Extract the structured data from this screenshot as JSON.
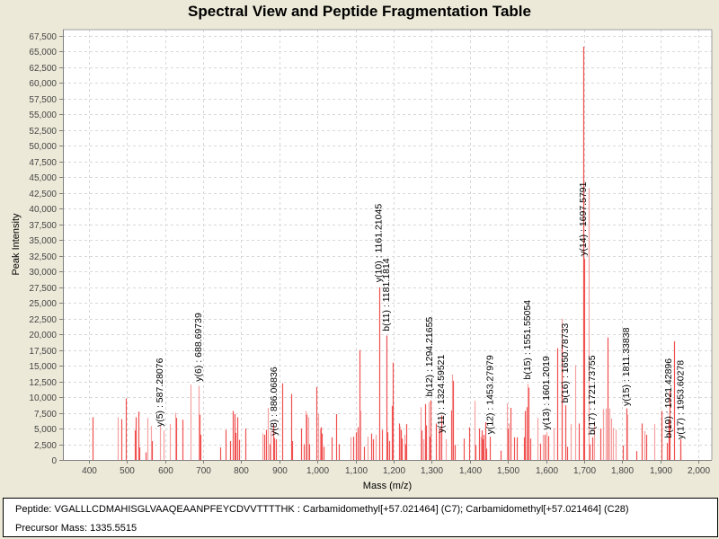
{
  "window": {
    "title": "Spectral View and Peptide Fragmentation Table"
  },
  "info_panel": {
    "peptide_label": "Peptide:",
    "peptide": "VGALLLCDMAHISGLVAAQEAANPFEYCDVVTTTTHK : Carbamidomethyl[+57.021464] (C7); Carbamidomethyl[+57.021464] (C28)",
    "precursor_label": "Precursor Mass:",
    "precursor_mass": "1335.5515"
  },
  "colors": {
    "peak_dark": "#f05050",
    "peak_light": "#f5a0a0",
    "grid": "#d8d8d8",
    "plot_bg": "#ffffff",
    "frame_bg": "#ece9d8"
  },
  "chart_data": {
    "type": "bar",
    "title": "Spectral View and Peptide Fragmentation Table",
    "xlabel": "Mass (m/z)",
    "ylabel": "Peak Intensity",
    "xlim": [
      332,
      2035
    ],
    "ylim": [
      0,
      68500
    ],
    "grid": true,
    "legend": "none",
    "x_ticks": [
      400,
      500,
      600,
      700,
      800,
      900,
      1000,
      1100,
      1200,
      1300,
      1400,
      1500,
      1600,
      1700,
      1800,
      1900,
      2000
    ],
    "x_tick_labels": [
      "400",
      "500",
      "600",
      "700",
      "800",
      "900",
      "1,000",
      "1,100",
      "1,200",
      "1,300",
      "1,400",
      "1,500",
      "1,600",
      "1,700",
      "1,800",
      "1,900",
      "2,000"
    ],
    "y_ticks": [
      0,
      2500,
      5000,
      7500,
      10000,
      12500,
      15000,
      17500,
      20000,
      22500,
      25000,
      27500,
      30000,
      32500,
      35000,
      37500,
      40000,
      42500,
      45000,
      47500,
      50000,
      52500,
      55000,
      57500,
      60000,
      62500,
      65000,
      67500
    ],
    "y_tick_labels": [
      "0",
      "2,500",
      "5,000",
      "7,500",
      "10,000",
      "12,500",
      "15,000",
      "17,500",
      "20,000",
      "22,500",
      "25,000",
      "27,500",
      "30,000",
      "32,500",
      "35,000",
      "37,500",
      "40,000",
      "42,500",
      "45,000",
      "47,500",
      "50,000",
      "52,500",
      "55,000",
      "57,500",
      "60,000",
      "62,500",
      "65,000",
      "67,500"
    ],
    "peaks": [
      {
        "mz": 410,
        "intensity": 6800,
        "shade": "dark"
      },
      {
        "mz": 475,
        "intensity": 6800,
        "shade": "light"
      },
      {
        "mz": 486,
        "intensity": 6500,
        "shade": "dark"
      },
      {
        "mz": 496,
        "intensity": 9800,
        "shade": "dark"
      },
      {
        "mz": 520,
        "intensity": 4700,
        "shade": "dark"
      },
      {
        "mz": 522,
        "intensity": 6800,
        "shade": "dark"
      },
      {
        "mz": 530,
        "intensity": 7700,
        "shade": "dark"
      },
      {
        "mz": 533,
        "intensity": 2000,
        "shade": "dark"
      },
      {
        "mz": 550,
        "intensity": 1200,
        "shade": "dark"
      },
      {
        "mz": 553,
        "intensity": 6700,
        "shade": "light"
      },
      {
        "mz": 563,
        "intensity": 5400,
        "shade": "light"
      },
      {
        "mz": 565,
        "intensity": 3000,
        "shade": "dark"
      },
      {
        "mz": 587.28,
        "intensity": 5500,
        "shade": "light"
      },
      {
        "mz": 595,
        "intensity": 4700,
        "shade": "light"
      },
      {
        "mz": 612,
        "intensity": 5700,
        "shade": "light"
      },
      {
        "mz": 628,
        "intensity": 7500,
        "shade": "light"
      },
      {
        "mz": 630,
        "intensity": 6700,
        "shade": "dark"
      },
      {
        "mz": 645,
        "intensity": 6400,
        "shade": "dark"
      },
      {
        "mz": 668,
        "intensity": 12000,
        "shade": "light"
      },
      {
        "mz": 688.7,
        "intensity": 11800,
        "shade": "light"
      },
      {
        "mz": 690,
        "intensity": 7200,
        "shade": "dark"
      },
      {
        "mz": 692,
        "intensity": 4000,
        "shade": "dark"
      },
      {
        "mz": 745,
        "intensity": 2000,
        "shade": "dark"
      },
      {
        "mz": 760,
        "intensity": 4800,
        "shade": "dark"
      },
      {
        "mz": 770,
        "intensity": 3000,
        "shade": "dark"
      },
      {
        "mz": 778,
        "intensity": 7800,
        "shade": "dark"
      },
      {
        "mz": 782,
        "intensity": 7300,
        "shade": "dark"
      },
      {
        "mz": 785,
        "intensity": 4300,
        "shade": "dark"
      },
      {
        "mz": 790,
        "intensity": 6800,
        "shade": "dark"
      },
      {
        "mz": 795,
        "intensity": 3200,
        "shade": "dark"
      },
      {
        "mz": 810,
        "intensity": 5000,
        "shade": "dark"
      },
      {
        "mz": 855,
        "intensity": 4200,
        "shade": "light"
      },
      {
        "mz": 860,
        "intensity": 4000,
        "shade": "dark"
      },
      {
        "mz": 865,
        "intensity": 4800,
        "shade": "dark"
      },
      {
        "mz": 870,
        "intensity": 8300,
        "shade": "light"
      },
      {
        "mz": 875,
        "intensity": 2500,
        "shade": "dark"
      },
      {
        "mz": 878,
        "intensity": 4600,
        "shade": "light"
      },
      {
        "mz": 884,
        "intensity": 5600,
        "shade": "dark"
      },
      {
        "mz": 886.07,
        "intensity": 3500,
        "shade": "dark"
      },
      {
        "mz": 890,
        "intensity": 3300,
        "shade": "dark"
      },
      {
        "mz": 907,
        "intensity": 12200,
        "shade": "dark"
      },
      {
        "mz": 932,
        "intensity": 10500,
        "shade": "dark"
      },
      {
        "mz": 934,
        "intensity": 3000,
        "shade": "dark"
      },
      {
        "mz": 958,
        "intensity": 5000,
        "shade": "dark"
      },
      {
        "mz": 963,
        "intensity": 2500,
        "shade": "dark"
      },
      {
        "mz": 970,
        "intensity": 7800,
        "shade": "light"
      },
      {
        "mz": 972,
        "intensity": 7200,
        "shade": "dark"
      },
      {
        "mz": 975,
        "intensity": 6800,
        "shade": "light"
      },
      {
        "mz": 978,
        "intensity": 2500,
        "shade": "dark"
      },
      {
        "mz": 998,
        "intensity": 11600,
        "shade": "dark"
      },
      {
        "mz": 1003,
        "intensity": 7300,
        "shade": "light"
      },
      {
        "mz": 1007,
        "intensity": 5000,
        "shade": "light"
      },
      {
        "mz": 1010,
        "intensity": 5200,
        "shade": "dark"
      },
      {
        "mz": 1012,
        "intensity": 4200,
        "shade": "dark"
      },
      {
        "mz": 1017,
        "intensity": 2100,
        "shade": "dark"
      },
      {
        "mz": 1038,
        "intensity": 3600,
        "shade": "dark"
      },
      {
        "mz": 1048,
        "intensity": 7300,
        "shade": "dark"
      },
      {
        "mz": 1057,
        "intensity": 2500,
        "shade": "dark"
      },
      {
        "mz": 1087,
        "intensity": 3600,
        "shade": "light"
      },
      {
        "mz": 1094,
        "intensity": 3700,
        "shade": "dark"
      },
      {
        "mz": 1100,
        "intensity": 4400,
        "shade": "dark"
      },
      {
        "mz": 1106,
        "intensity": 5200,
        "shade": "dark"
      },
      {
        "mz": 1110,
        "intensity": 17500,
        "shade": "dark"
      },
      {
        "mz": 1113,
        "intensity": 7800,
        "shade": "light"
      },
      {
        "mz": 1123,
        "intensity": 2100,
        "shade": "dark"
      },
      {
        "mz": 1132,
        "intensity": 3700,
        "shade": "light"
      },
      {
        "mz": 1141,
        "intensity": 4200,
        "shade": "dark"
      },
      {
        "mz": 1145,
        "intensity": 3300,
        "shade": "dark"
      },
      {
        "mz": 1152,
        "intensity": 4000,
        "shade": "light"
      },
      {
        "mz": 1161.21,
        "intensity": 27500,
        "shade": "dark"
      },
      {
        "mz": 1170,
        "intensity": 4800,
        "shade": "dark"
      },
      {
        "mz": 1181.18,
        "intensity": 19800,
        "shade": "dark"
      },
      {
        "mz": 1183,
        "intensity": 4400,
        "shade": "dark"
      },
      {
        "mz": 1188,
        "intensity": 3000,
        "shade": "dark"
      },
      {
        "mz": 1195,
        "intensity": 8600,
        "shade": "dark"
      },
      {
        "mz": 1198,
        "intensity": 15500,
        "shade": "dark"
      },
      {
        "mz": 1213,
        "intensity": 5800,
        "shade": "dark"
      },
      {
        "mz": 1216,
        "intensity": 5300,
        "shade": "light"
      },
      {
        "mz": 1219,
        "intensity": 4800,
        "shade": "dark"
      },
      {
        "mz": 1222,
        "intensity": 3400,
        "shade": "dark"
      },
      {
        "mz": 1228,
        "intensity": 4000,
        "shade": "light"
      },
      {
        "mz": 1231,
        "intensity": 2500,
        "shade": "dark"
      },
      {
        "mz": 1234,
        "intensity": 5700,
        "shade": "dark"
      },
      {
        "mz": 1270,
        "intensity": 8400,
        "shade": "light"
      },
      {
        "mz": 1272,
        "intensity": 4700,
        "shade": "dark"
      },
      {
        "mz": 1278,
        "intensity": 3300,
        "shade": "light"
      },
      {
        "mz": 1282,
        "intensity": 8900,
        "shade": "dark"
      },
      {
        "mz": 1285,
        "intensity": 5500,
        "shade": "dark"
      },
      {
        "mz": 1291,
        "intensity": 9200,
        "shade": "light"
      },
      {
        "mz": 1294.22,
        "intensity": 3700,
        "shade": "dark"
      },
      {
        "mz": 1297,
        "intensity": 9500,
        "shade": "dark"
      },
      {
        "mz": 1312,
        "intensity": 5800,
        "shade": "dark"
      },
      {
        "mz": 1319,
        "intensity": 4800,
        "shade": "light"
      },
      {
        "mz": 1321,
        "intensity": 5000,
        "shade": "dark"
      },
      {
        "mz": 1324.6,
        "intensity": 7100,
        "shade": "dark"
      },
      {
        "mz": 1336,
        "intensity": 3300,
        "shade": "light"
      },
      {
        "mz": 1352,
        "intensity": 7900,
        "shade": "dark"
      },
      {
        "mz": 1354,
        "intensity": 13600,
        "shade": "light"
      },
      {
        "mz": 1356,
        "intensity": 12600,
        "shade": "dark"
      },
      {
        "mz": 1360,
        "intensity": 2400,
        "shade": "dark"
      },
      {
        "mz": 1385,
        "intensity": 3400,
        "shade": "dark"
      },
      {
        "mz": 1397,
        "intensity": 5200,
        "shade": "dark"
      },
      {
        "mz": 1412,
        "intensity": 9400,
        "shade": "light"
      },
      {
        "mz": 1414,
        "intensity": 2400,
        "shade": "dark"
      },
      {
        "mz": 1423,
        "intensity": 5000,
        "shade": "dark"
      },
      {
        "mz": 1428,
        "intensity": 3700,
        "shade": "light"
      },
      {
        "mz": 1431,
        "intensity": 4700,
        "shade": "dark"
      },
      {
        "mz": 1434,
        "intensity": 3300,
        "shade": "dark"
      },
      {
        "mz": 1437,
        "intensity": 4000,
        "shade": "dark"
      },
      {
        "mz": 1441,
        "intensity": 6000,
        "shade": "dark"
      },
      {
        "mz": 1444,
        "intensity": 1800,
        "shade": "dark"
      },
      {
        "mz": 1453.28,
        "intensity": 3700,
        "shade": "dark"
      },
      {
        "mz": 1480,
        "intensity": 1500,
        "shade": "dark"
      },
      {
        "mz": 1497,
        "intensity": 9000,
        "shade": "light"
      },
      {
        "mz": 1500,
        "intensity": 5000,
        "shade": "dark"
      },
      {
        "mz": 1503,
        "intensity": 5800,
        "shade": "light"
      },
      {
        "mz": 1506,
        "intensity": 8300,
        "shade": "dark"
      },
      {
        "mz": 1515,
        "intensity": 3600,
        "shade": "dark"
      },
      {
        "mz": 1524,
        "intensity": 3600,
        "shade": "dark"
      },
      {
        "mz": 1541,
        "intensity": 3600,
        "shade": "dark"
      },
      {
        "mz": 1545,
        "intensity": 7800,
        "shade": "dark"
      },
      {
        "mz": 1549,
        "intensity": 8400,
        "shade": "dark"
      },
      {
        "mz": 1551.55,
        "intensity": 12100,
        "shade": "light"
      },
      {
        "mz": 1554,
        "intensity": 11500,
        "shade": "dark"
      },
      {
        "mz": 1558,
        "intensity": 3400,
        "shade": "dark"
      },
      {
        "mz": 1578,
        "intensity": 6700,
        "shade": "light"
      },
      {
        "mz": 1584,
        "intensity": 2600,
        "shade": "dark"
      },
      {
        "mz": 1592,
        "intensity": 4000,
        "shade": "light"
      },
      {
        "mz": 1597,
        "intensity": 4000,
        "shade": "dark"
      },
      {
        "mz": 1601.2,
        "intensity": 4400,
        "shade": "light"
      },
      {
        "mz": 1605,
        "intensity": 3800,
        "shade": "dark"
      },
      {
        "mz": 1620,
        "intensity": 5100,
        "shade": "light"
      },
      {
        "mz": 1630,
        "intensity": 17800,
        "shade": "dark"
      },
      {
        "mz": 1640,
        "intensity": 22500,
        "shade": "light"
      },
      {
        "mz": 1642,
        "intensity": 18500,
        "shade": "dark"
      },
      {
        "mz": 1650.79,
        "intensity": 8700,
        "shade": "dark"
      },
      {
        "mz": 1655,
        "intensity": 2100,
        "shade": "dark"
      },
      {
        "mz": 1665,
        "intensity": 5700,
        "shade": "light"
      },
      {
        "mz": 1677,
        "intensity": 15100,
        "shade": "light"
      },
      {
        "mz": 1685,
        "intensity": 5800,
        "shade": "dark"
      },
      {
        "mz": 1697.58,
        "intensity": 65800,
        "shade": "dark"
      },
      {
        "mz": 1700,
        "intensity": 32000,
        "shade": "dark"
      },
      {
        "mz": 1713,
        "intensity": 43300,
        "shade": "light"
      },
      {
        "mz": 1715,
        "intensity": 2500,
        "shade": "dark"
      },
      {
        "mz": 1721.74,
        "intensity": 3600,
        "shade": "dark"
      },
      {
        "mz": 1726,
        "intensity": 5800,
        "shade": "light"
      },
      {
        "mz": 1742,
        "intensity": 5000,
        "shade": "dark"
      },
      {
        "mz": 1750,
        "intensity": 8100,
        "shade": "light"
      },
      {
        "mz": 1757,
        "intensity": 8200,
        "shade": "light"
      },
      {
        "mz": 1762,
        "intensity": 19500,
        "shade": "dark"
      },
      {
        "mz": 1766,
        "intensity": 8200,
        "shade": "light"
      },
      {
        "mz": 1772,
        "intensity": 6600,
        "shade": "light"
      },
      {
        "mz": 1776,
        "intensity": 5100,
        "shade": "light"
      },
      {
        "mz": 1783,
        "intensity": 4800,
        "shade": "light"
      },
      {
        "mz": 1802,
        "intensity": 2300,
        "shade": "dark"
      },
      {
        "mz": 1811.34,
        "intensity": 8200,
        "shade": "dark"
      },
      {
        "mz": 1814,
        "intensity": 7200,
        "shade": "light"
      },
      {
        "mz": 1836,
        "intensity": 1400,
        "shade": "dark"
      },
      {
        "mz": 1852,
        "intensity": 5800,
        "shade": "dark"
      },
      {
        "mz": 1859,
        "intensity": 4600,
        "shade": "light"
      },
      {
        "mz": 1862,
        "intensity": 4000,
        "shade": "dark"
      },
      {
        "mz": 1883,
        "intensity": 5700,
        "shade": "light"
      },
      {
        "mz": 1904,
        "intensity": 7800,
        "shade": "dark"
      },
      {
        "mz": 1918,
        "intensity": 2700,
        "shade": "dark"
      },
      {
        "mz": 1921.43,
        "intensity": 6200,
        "shade": "dark"
      },
      {
        "mz": 1924,
        "intensity": 11000,
        "shade": "dark"
      },
      {
        "mz": 1937,
        "intensity": 18900,
        "shade": "dark"
      },
      {
        "mz": 1952,
        "intensity": 3300,
        "shade": "dark"
      },
      {
        "mz": 1953.6,
        "intensity": 2500,
        "shade": "dark"
      }
    ],
    "annotations": [
      {
        "label": "y(5) : 587.28076",
        "mz": 587.28,
        "label_base_intensity": 5000
      },
      {
        "label": "y(6) : 688.69739",
        "mz": 688.7,
        "label_base_intensity": 12200
      },
      {
        "label": "y(8) : 886.06836",
        "mz": 886.07,
        "label_base_intensity": 3600
      },
      {
        "label": "y(10) : 1161.21045",
        "mz": 1161.21,
        "label_base_intensity": 28000
      },
      {
        "label": "b(11) : 1181.1814",
        "mz": 1181.18,
        "label_base_intensity": 20200
      },
      {
        "label": "b(12) : 1294.21655",
        "mz": 1294.22,
        "label_base_intensity": 9800
      },
      {
        "label": "y(11) : 1324.59521",
        "mz": 1324.6,
        "label_base_intensity": 4000
      },
      {
        "label": "y(12) : 1453.27979",
        "mz": 1453.28,
        "label_base_intensity": 3800
      },
      {
        "label": "b(15) : 1551.55054",
        "mz": 1551.55,
        "label_base_intensity": 12500
      },
      {
        "label": "y(13) : 1601.2019",
        "mz": 1601.2,
        "label_base_intensity": 4500
      },
      {
        "label": "b(16) : 1650.78733",
        "mz": 1650.79,
        "label_base_intensity": 8800
      },
      {
        "label": "y(14) : 1697.5791",
        "mz": 1697.58,
        "label_base_intensity": 32200
      },
      {
        "label": "b(17) : 1721.73755",
        "mz": 1721.74,
        "label_base_intensity": 3700
      },
      {
        "label": "y(15) : 1811.33838",
        "mz": 1811.34,
        "label_base_intensity": 8300
      },
      {
        "label": "b(19) : 1921.42896",
        "mz": 1921.43,
        "label_base_intensity": 3200
      },
      {
        "label": "y(17) : 1953.60278",
        "mz": 1953.6,
        "label_base_intensity": 3000
      }
    ]
  }
}
